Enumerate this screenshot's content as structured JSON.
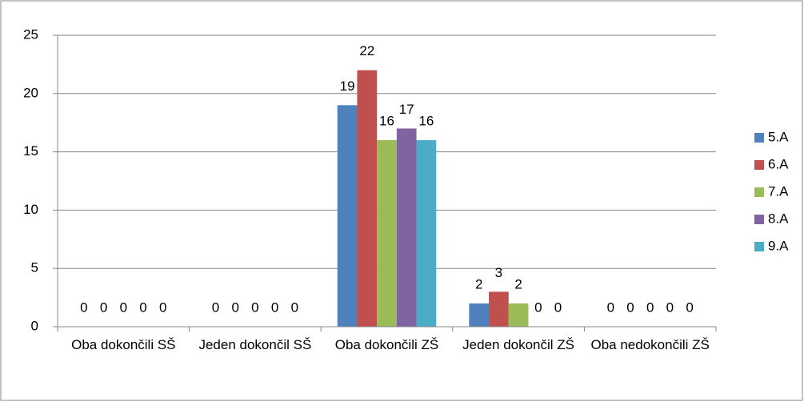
{
  "chart_data": {
    "type": "bar",
    "categories": [
      "Oba dokončili SŠ",
      "Jeden dokončil SŠ",
      "Oba dokončili ZŠ",
      "Jeden dokončil ZŠ",
      "Oba nedokončili ZŠ"
    ],
    "series": [
      {
        "name": "5.A",
        "color": "#4f81bd",
        "values": [
          0,
          0,
          19,
          2,
          0
        ]
      },
      {
        "name": "6.A",
        "color": "#c0504d",
        "values": [
          0,
          0,
          22,
          3,
          0
        ]
      },
      {
        "name": "7.A",
        "color": "#9bbb59",
        "values": [
          0,
          0,
          16,
          2,
          0
        ]
      },
      {
        "name": "8.A",
        "color": "#8064a2",
        "values": [
          0,
          0,
          17,
          0,
          0
        ]
      },
      {
        "name": "9.A",
        "color": "#4bacc6",
        "values": [
          0,
          0,
          16,
          0,
          0
        ]
      }
    ],
    "ylim": [
      0,
      25
    ],
    "yticks": [
      0,
      5,
      10,
      15,
      20,
      25
    ],
    "grid": true,
    "legend": "right"
  }
}
